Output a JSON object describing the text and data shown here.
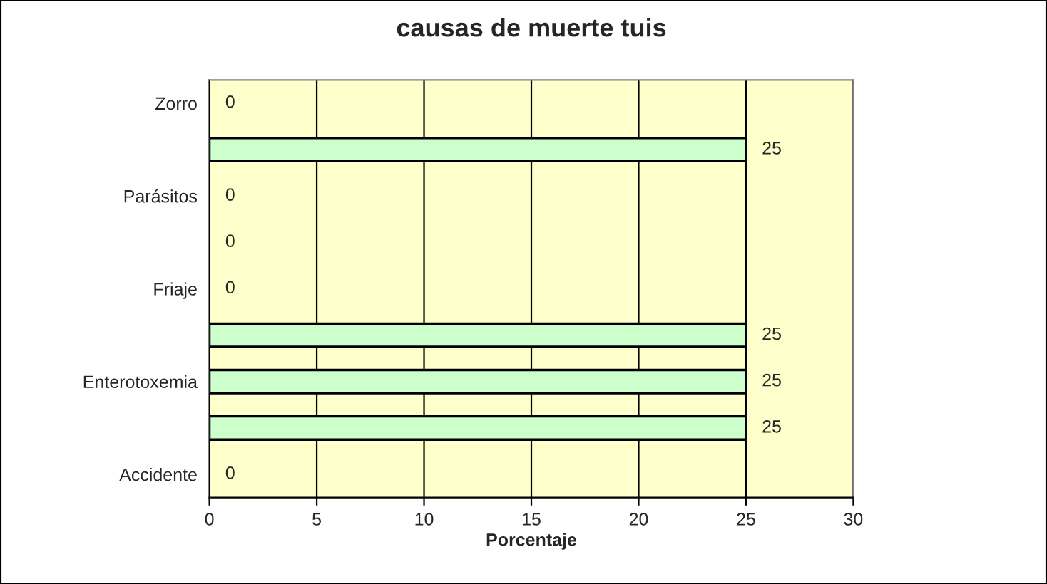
{
  "chart_data": {
    "type": "bar",
    "orientation": "horizontal",
    "title": "causas de muerte tuis",
    "xlabel": "Porcentaje",
    "categories": [
      "Zorro",
      null,
      "Parásitos",
      null,
      "Friaje",
      null,
      "Enterotoxemia",
      null,
      "Accidente"
    ],
    "values": [
      0,
      25,
      0,
      0,
      0,
      25,
      25,
      25,
      0
    ],
    "color": "#ccffcc",
    "xlim": [
      0,
      30
    ],
    "xticks": [
      0,
      5,
      10,
      15,
      20,
      25,
      30
    ],
    "grid": "x",
    "data_labels": true
  }
}
